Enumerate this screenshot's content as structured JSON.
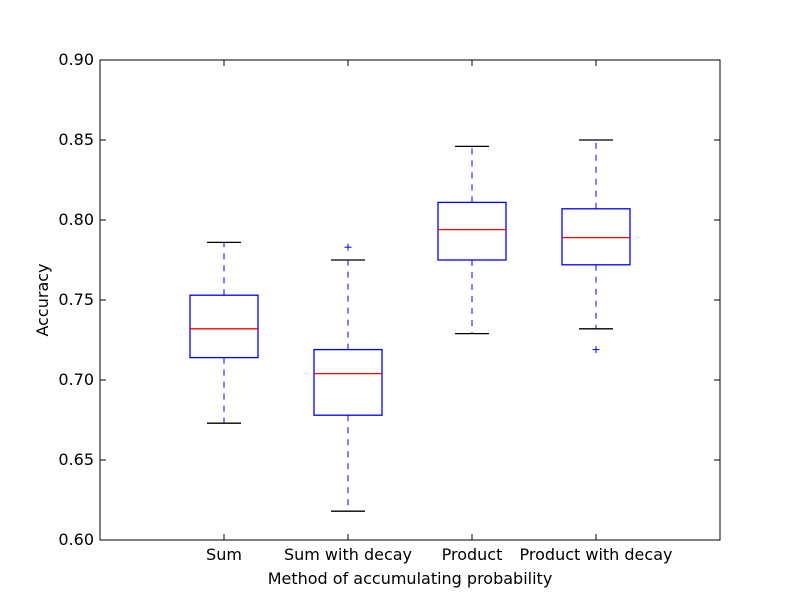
{
  "chart_data": {
    "type": "box",
    "title": "",
    "xlabel": "Method of accumulating probability",
    "ylabel": "Accuracy",
    "ylim": [
      0.6,
      0.9
    ],
    "yticks": [
      0.6,
      0.65,
      0.7,
      0.75,
      0.8,
      0.85,
      0.9
    ],
    "ytick_labels": [
      "0.60",
      "0.65",
      "0.70",
      "0.75",
      "0.80",
      "0.85",
      "0.90"
    ],
    "categories": [
      "Sum",
      "Sum with decay",
      "Product",
      "Product with decay"
    ],
    "boxes": [
      {
        "label": "Sum",
        "whisker_low": 0.673,
        "q1": 0.714,
        "median": 0.732,
        "q3": 0.753,
        "whisker_high": 0.786,
        "outliers": []
      },
      {
        "label": "Sum with decay",
        "whisker_low": 0.618,
        "q1": 0.678,
        "median": 0.704,
        "q3": 0.719,
        "whisker_high": 0.775,
        "outliers": [
          0.783
        ]
      },
      {
        "label": "Product",
        "whisker_low": 0.729,
        "q1": 0.775,
        "median": 0.794,
        "q3": 0.811,
        "whisker_high": 0.846,
        "outliers": []
      },
      {
        "label": "Product with decay",
        "whisker_low": 0.732,
        "q1": 0.772,
        "median": 0.789,
        "q3": 0.807,
        "whisker_high": 0.85,
        "outliers": [
          0.719
        ]
      }
    ],
    "colors": {
      "box": "#0000ff",
      "median": "#ff0000",
      "whisker": "#0000ff",
      "cap": "#000000",
      "outlier": "#0000ff",
      "axes": "#000000"
    },
    "grid": false,
    "legend": "none"
  }
}
